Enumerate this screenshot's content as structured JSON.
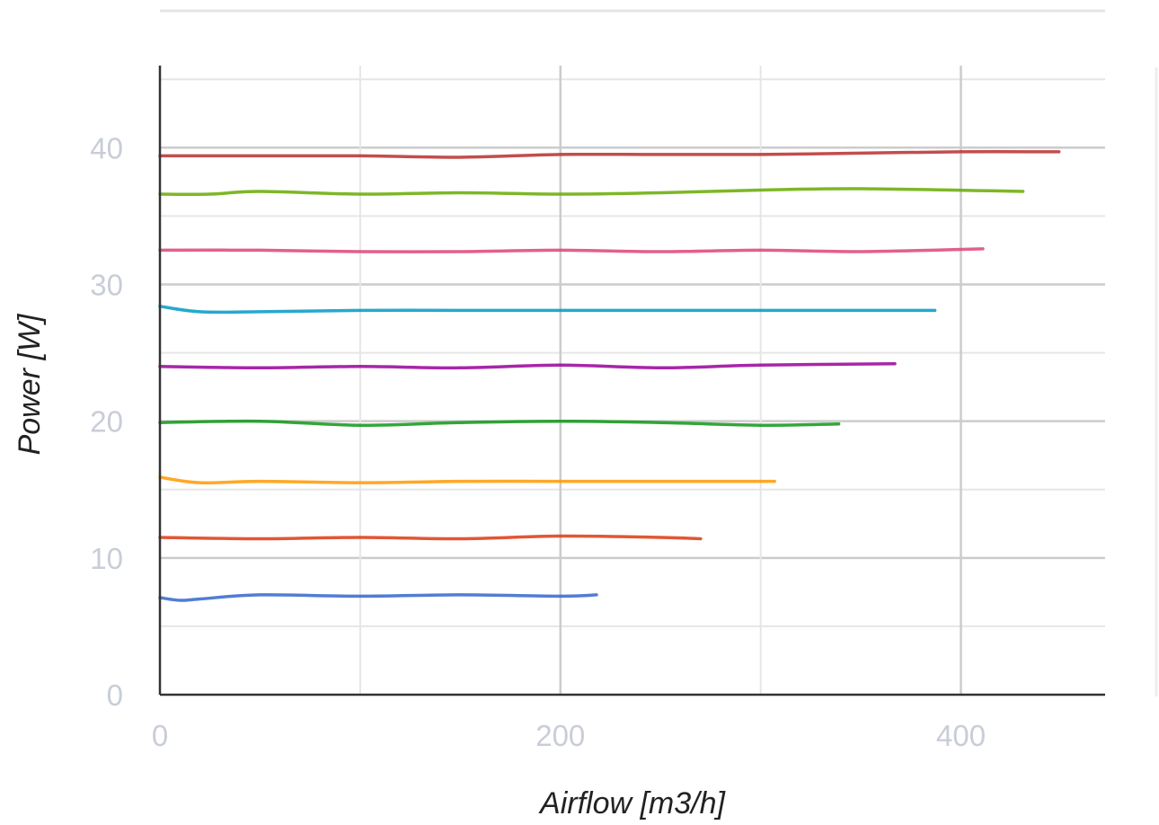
{
  "chart_data": {
    "type": "line",
    "title": "",
    "xlabel": "Airflow [m3/h]",
    "ylabel": "Power [W]",
    "xlim": [
      0,
      472
    ],
    "ylim": [
      0,
      46
    ],
    "x_ticks": [
      "0",
      "200",
      "400"
    ],
    "y_ticks": [
      "0",
      "10",
      "20",
      "30",
      "40"
    ],
    "grid": true,
    "legend": "none",
    "series": [
      {
        "color": "#3366cc",
        "x": [
          0,
          10,
          20,
          50,
          100,
          150,
          200,
          218
        ],
        "y": [
          7.1,
          6.9,
          7.0,
          7.3,
          7.2,
          7.3,
          7.2,
          7.3
        ]
      },
      {
        "color": "#dc3912",
        "x": [
          0,
          50,
          100,
          150,
          200,
          250,
          270
        ],
        "y": [
          11.5,
          11.4,
          11.5,
          11.4,
          11.6,
          11.5,
          11.4
        ]
      },
      {
        "color": "#ff9900",
        "x": [
          0,
          20,
          50,
          100,
          150,
          200,
          250,
          307
        ],
        "y": [
          15.9,
          15.5,
          15.6,
          15.5,
          15.6,
          15.6,
          15.6,
          15.6
        ]
      },
      {
        "color": "#109618",
        "x": [
          0,
          50,
          100,
          150,
          200,
          250,
          300,
          339
        ],
        "y": [
          19.9,
          20.0,
          19.7,
          19.9,
          20.0,
          19.9,
          19.7,
          19.8
        ]
      },
      {
        "color": "#990099",
        "x": [
          0,
          50,
          100,
          150,
          200,
          250,
          300,
          367
        ],
        "y": [
          24.0,
          23.9,
          24.0,
          23.9,
          24.1,
          23.9,
          24.1,
          24.2
        ]
      },
      {
        "color": "#0099c6",
        "x": [
          0,
          20,
          50,
          100,
          150,
          200,
          250,
          300,
          387
        ],
        "y": [
          28.4,
          28.0,
          28.0,
          28.1,
          28.1,
          28.1,
          28.1,
          28.1,
          28.1
        ]
      },
      {
        "color": "#dd4477",
        "x": [
          0,
          50,
          100,
          150,
          200,
          250,
          300,
          350,
          411
        ],
        "y": [
          32.5,
          32.5,
          32.4,
          32.4,
          32.5,
          32.4,
          32.5,
          32.4,
          32.6
        ]
      },
      {
        "color": "#66aa00",
        "x": [
          0,
          25,
          50,
          100,
          150,
          200,
          250,
          300,
          350,
          431
        ],
        "y": [
          36.6,
          36.6,
          36.8,
          36.6,
          36.7,
          36.6,
          36.7,
          36.9,
          37.0,
          36.8
        ]
      },
      {
        "color": "#b82e2e",
        "x": [
          0,
          50,
          100,
          150,
          200,
          250,
          300,
          350,
          400,
          449
        ],
        "y": [
          39.4,
          39.4,
          39.4,
          39.3,
          39.5,
          39.5,
          39.5,
          39.6,
          39.7,
          39.7
        ]
      }
    ]
  }
}
